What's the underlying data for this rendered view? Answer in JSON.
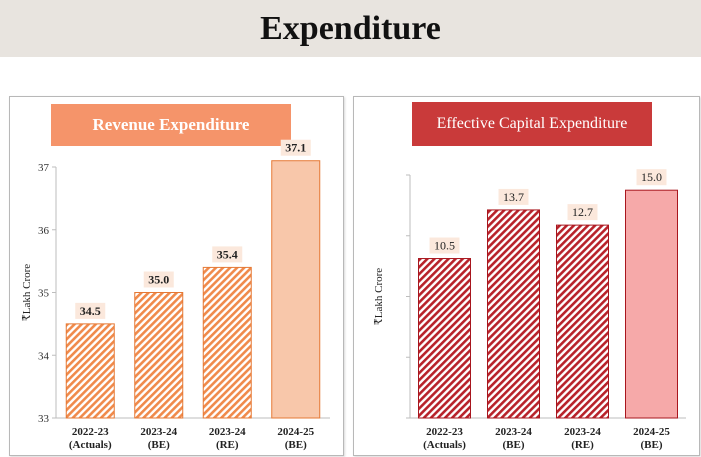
{
  "page": {
    "title": "Expenditure"
  },
  "chart_data": [
    {
      "type": "bar",
      "title": "Revenue Expenditure",
      "ylabel": "₹Lakh Crore",
      "xlabel": "",
      "categories": [
        [
          "2022-23",
          "(Actuals)"
        ],
        [
          "2023-24",
          "(BE)"
        ],
        [
          "2023-24",
          "(RE)"
        ],
        [
          "2024-25",
          "(BE)"
        ]
      ],
      "values": [
        34.5,
        35.0,
        35.4,
        37.1
      ],
      "data_labels": [
        "34.5",
        "35.0",
        "35.4",
        "37.1"
      ],
      "ylim": [
        33,
        37
      ],
      "yticks": [
        33,
        34,
        35,
        36,
        37
      ],
      "yticks_visible": true,
      "grid": false,
      "colors": {
        "pattern": "#f08a4b",
        "solid": "#f8c7aa",
        "border": "#e57935"
      }
    },
    {
      "type": "bar",
      "title": "Effective Capital Expenditure",
      "ylabel": "₹Lakh Crore",
      "xlabel": "",
      "categories": [
        [
          "2022-23",
          "(Actuals)"
        ],
        [
          "2023-24",
          "(BE)"
        ],
        [
          "2023-24",
          "(RE)"
        ],
        [
          "2024-25",
          "(BE)"
        ]
      ],
      "values": [
        10.5,
        13.7,
        12.7,
        15.0
      ],
      "data_labels": [
        "10.5",
        "13.7",
        "12.7",
        "15.0"
      ],
      "ylim": [
        0,
        16
      ],
      "yticks": [
        0,
        4,
        8,
        12,
        16
      ],
      "yticks_visible": false,
      "grid": false,
      "colors": {
        "pattern": "#b8222a",
        "solid": "#f6a9a9",
        "border": "#a8161e"
      }
    }
  ]
}
